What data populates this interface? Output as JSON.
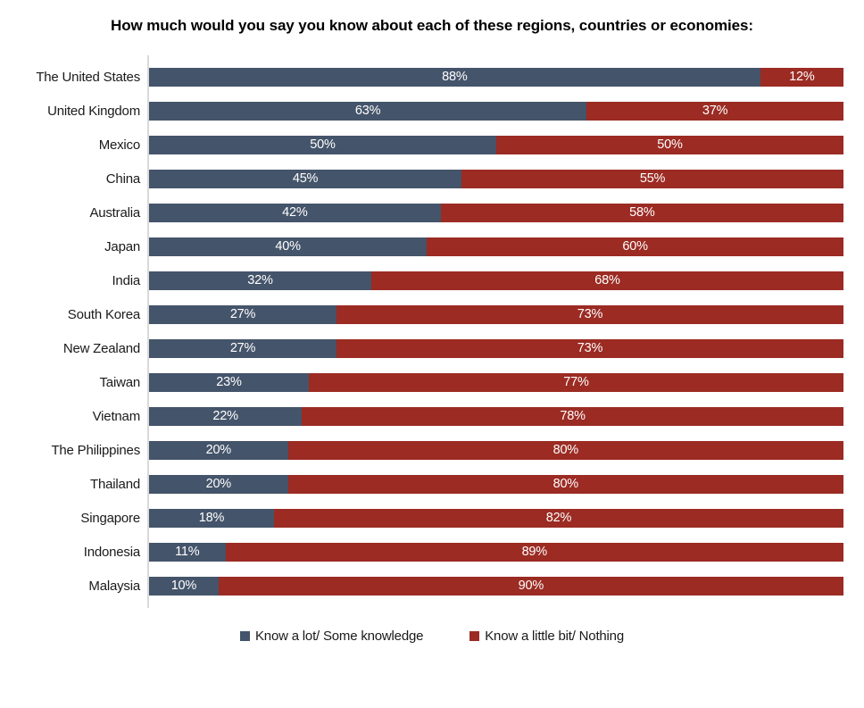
{
  "chart_data": {
    "type": "bar",
    "orientation": "horizontal",
    "stacked": true,
    "title": "How much would you say you know about each of these regions, countries or economies:",
    "categories": [
      "The United States",
      "United Kingdom",
      "Mexico",
      "China",
      "Australia",
      "Japan",
      "India",
      "South Korea",
      "New Zealand",
      "Taiwan",
      "Vietnam",
      "The Philippines",
      "Thailand",
      "Singapore",
      "Indonesia",
      "Malaysia"
    ],
    "series": [
      {
        "name": "Know a lot/ Some knowledge",
        "color": "#44546A",
        "values": [
          88,
          63,
          50,
          45,
          42,
          40,
          32,
          27,
          27,
          23,
          22,
          20,
          20,
          18,
          11,
          10
        ]
      },
      {
        "name": "Know a little bit/ Nothing",
        "color": "#9B2B23",
        "values": [
          12,
          37,
          50,
          55,
          58,
          60,
          68,
          73,
          73,
          77,
          78,
          80,
          80,
          82,
          89,
          90
        ]
      }
    ],
    "value_suffix": "%",
    "value_label_color": "#ffffff",
    "xlim": [
      0,
      100
    ],
    "grid": false,
    "axis_line_color": "#d9d9d9",
    "legend_position": "bottom"
  }
}
